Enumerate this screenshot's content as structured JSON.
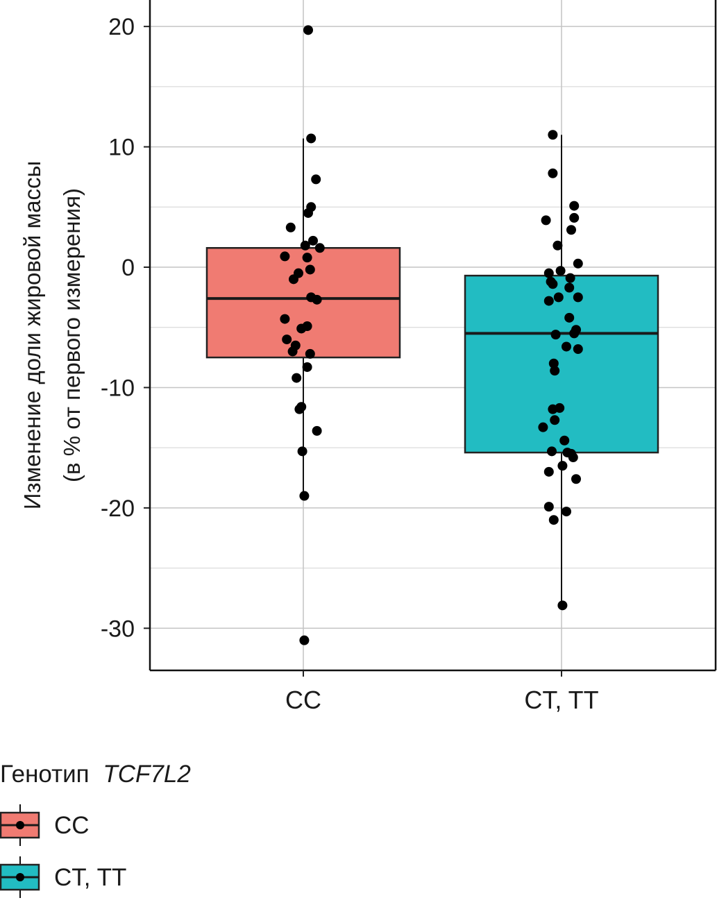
{
  "chart_data": {
    "type": "box",
    "title": "",
    "ylabel_line1": "Изменение доли жировой массы",
    "ylabel_line2": "(в % от первого измерения)",
    "xlabel": "",
    "categories": [
      "CC",
      "CT, TT"
    ],
    "ylim": [
      -33.5,
      22.2
    ],
    "y_ticks": [
      20,
      10,
      0,
      -10,
      -20,
      -30
    ],
    "y_tick_labels": [
      "20",
      "10",
      "0",
      "-10",
      "-20",
      "-30"
    ],
    "grid": true,
    "legend": {
      "position": "bottom-left",
      "title_prefix": "Генотип",
      "title_gene": "TCF7L2",
      "entries": [
        "CC",
        "CT, TT"
      ]
    },
    "series": [
      {
        "name": "CC",
        "color": "#F07B72",
        "box": {
          "q1": -7.5,
          "median": -2.6,
          "q3": 1.6,
          "whisker_low": -19.0,
          "whisker_high": 10.7
        },
        "points": [
          {
            "dx": 0.05,
            "y": 19.7
          },
          {
            "dx": 0.08,
            "y": 10.7
          },
          {
            "dx": 0.13,
            "y": 7.3
          },
          {
            "dx": 0.08,
            "y": 5.0
          },
          {
            "dx": 0.05,
            "y": 4.5
          },
          {
            "dx": -0.13,
            "y": 3.3
          },
          {
            "dx": 0.1,
            "y": 2.2
          },
          {
            "dx": 0.02,
            "y": 1.8
          },
          {
            "dx": 0.17,
            "y": 1.6
          },
          {
            "dx": -0.19,
            "y": 0.9
          },
          {
            "dx": 0.04,
            "y": 0.8
          },
          {
            "dx": 0.07,
            "y": -0.2
          },
          {
            "dx": -0.05,
            "y": -0.5
          },
          {
            "dx": -0.1,
            "y": -1.0
          },
          {
            "dx": 0.08,
            "y": -2.5
          },
          {
            "dx": 0.14,
            "y": -2.7
          },
          {
            "dx": -0.19,
            "y": -4.3
          },
          {
            "dx": 0.04,
            "y": -4.9
          },
          {
            "dx": -0.02,
            "y": -5.1
          },
          {
            "dx": -0.17,
            "y": -6.0
          },
          {
            "dx": -0.08,
            "y": -6.5
          },
          {
            "dx": -0.11,
            "y": -7.0
          },
          {
            "dx": 0.07,
            "y": -7.2
          },
          {
            "dx": 0.04,
            "y": -8.3
          },
          {
            "dx": -0.07,
            "y": -9.2
          },
          {
            "dx": -0.02,
            "y": -11.6
          },
          {
            "dx": -0.04,
            "y": -11.8
          },
          {
            "dx": 0.14,
            "y": -13.6
          },
          {
            "dx": -0.01,
            "y": -15.3
          },
          {
            "dx": 0.01,
            "y": -19.0
          },
          {
            "dx": 0.01,
            "y": -31.0
          }
        ]
      },
      {
        "name": "CT, TT",
        "color": "#22BCC2",
        "box": {
          "q1": -15.4,
          "median": -5.5,
          "q3": -0.7,
          "whisker_low": -28.1,
          "whisker_high": 11.0
        },
        "points": [
          {
            "dx": -0.09,
            "y": 11.0
          },
          {
            "dx": -0.09,
            "y": 7.8
          },
          {
            "dx": 0.13,
            "y": 5.1
          },
          {
            "dx": 0.13,
            "y": 4.1
          },
          {
            "dx": -0.16,
            "y": 3.9
          },
          {
            "dx": 0.1,
            "y": 3.1
          },
          {
            "dx": -0.04,
            "y": 1.8
          },
          {
            "dx": 0.17,
            "y": 0.3
          },
          {
            "dx": -0.01,
            "y": -0.3
          },
          {
            "dx": -0.13,
            "y": -0.5
          },
          {
            "dx": 0.09,
            "y": -0.9
          },
          {
            "dx": -0.11,
            "y": -1.2
          },
          {
            "dx": -0.09,
            "y": -1.4
          },
          {
            "dx": 0.08,
            "y": -1.7
          },
          {
            "dx": -0.03,
            "y": -2.5
          },
          {
            "dx": 0.17,
            "y": -2.5
          },
          {
            "dx": -0.13,
            "y": -2.8
          },
          {
            "dx": 0.08,
            "y": -4.2
          },
          {
            "dx": 0.15,
            "y": -5.2
          },
          {
            "dx": 0.13,
            "y": -5.5
          },
          {
            "dx": -0.06,
            "y": -5.6
          },
          {
            "dx": 0.05,
            "y": -6.6
          },
          {
            "dx": 0.17,
            "y": -6.8
          },
          {
            "dx": -0.08,
            "y": -8.0
          },
          {
            "dx": -0.07,
            "y": -8.6
          },
          {
            "dx": -0.09,
            "y": -11.8
          },
          {
            "dx": -0.02,
            "y": -11.7
          },
          {
            "dx": -0.07,
            "y": -12.7
          },
          {
            "dx": -0.19,
            "y": -13.3
          },
          {
            "dx": 0.03,
            "y": -14.4
          },
          {
            "dx": -0.1,
            "y": -15.3
          },
          {
            "dx": 0.06,
            "y": -15.4
          },
          {
            "dx": 0.1,
            "y": -15.5
          },
          {
            "dx": 0.12,
            "y": -15.8
          },
          {
            "dx": 0.01,
            "y": -16.5
          },
          {
            "dx": -0.13,
            "y": -17.0
          },
          {
            "dx": 0.15,
            "y": -17.6
          },
          {
            "dx": -0.13,
            "y": -19.9
          },
          {
            "dx": 0.05,
            "y": -20.3
          },
          {
            "dx": -0.08,
            "y": -21.0
          },
          {
            "dx": 0.01,
            "y": -28.1
          }
        ]
      }
    ]
  }
}
